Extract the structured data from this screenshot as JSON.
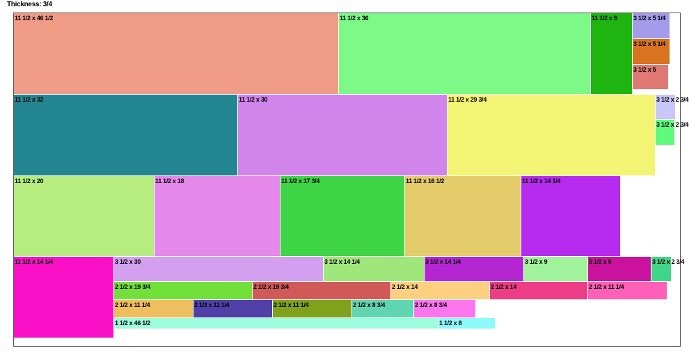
{
  "header": {
    "thickness": "Thickness: 3/4"
  },
  "pieces": [
    {
      "label": "11 1/2 x 46 1/2",
      "color": "#f09b86"
    },
    {
      "label": "11 1/2 x 36",
      "color": "#7cf987"
    },
    {
      "label": "11 1/2 x 6",
      "color": "#1fb511"
    },
    {
      "label": "3 1/2 x 5 1/4",
      "color": "#a49beb"
    },
    {
      "label": "3 1/2 x 5 1/4",
      "color": "#d87321"
    },
    {
      "label": "3 1/2 x 5",
      "color": "#e07974"
    },
    {
      "label": "11 1/2 x 32",
      "color": "#238690"
    },
    {
      "label": "11 1/2 x 30",
      "color": "#d184ea"
    },
    {
      "label": "11 1/2 x 29 3/4",
      "color": "#f4f474"
    },
    {
      "label": "3 1/2 x 2 3/4",
      "color": "#c9c6f8"
    },
    {
      "label": "3 1/2 x 2 3/4",
      "color": "#5ff97b"
    },
    {
      "label": "11 1/2 x 20",
      "color": "#b7ec81"
    },
    {
      "label": "11 1/2 x 18",
      "color": "#e488ea"
    },
    {
      "label": "11 1/2 x 17 3/4",
      "color": "#3fd446"
    },
    {
      "label": "11 1/2 x 16 1/2",
      "color": "#e3cb6a"
    },
    {
      "label": "11 1/2 x 14 1/4",
      "color": "#b62bef"
    },
    {
      "label": "11 1/2 x 14 1/4",
      "color": "#fa11c7"
    },
    {
      "label": "3 1/2 x 30",
      "color": "#d2a0ee"
    },
    {
      "label": "3 1/2 x 14 1/4",
      "color": "#9fe77a"
    },
    {
      "label": "3 1/2 x 14 1/4",
      "color": "#b526d3"
    },
    {
      "label": "3 1/2 x 9",
      "color": "#a1f39b"
    },
    {
      "label": "3 1/2 x 9",
      "color": "#cb129e"
    },
    {
      "label": "3 1/2 x 2 3/4",
      "color": "#3fd787"
    },
    {
      "label": "2 1/2 x 19 3/4",
      "color": "#72e03b"
    },
    {
      "label": "2 1/2 x 19 3/4",
      "color": "#d05a58"
    },
    {
      "label": "2 1/2 x 14",
      "color": "#fcd07e"
    },
    {
      "label": "2 1/2 x 14",
      "color": "#ec3d86"
    },
    {
      "label": "2 1/2 x 11 1/4",
      "color": "#fe60b8"
    },
    {
      "label": "2 1/2 x 11 1/4",
      "color": "#efbe5f"
    },
    {
      "label": "2 1/2 x 11 1/4",
      "color": "#5040a8"
    },
    {
      "label": "2 1/2 x 11 1/4",
      "color": "#7ea21c"
    },
    {
      "label": "2 1/2 x 8 3/4",
      "color": "#5fd6b1"
    },
    {
      "label": "2 1/2 x 8 3/4",
      "color": "#fb76ee"
    },
    {
      "label": "1 1/2 x 46 1/2",
      "color": "#9dfddd"
    },
    {
      "label": "1 1/2 x 8",
      "color": "#8cf9fa"
    }
  ]
}
